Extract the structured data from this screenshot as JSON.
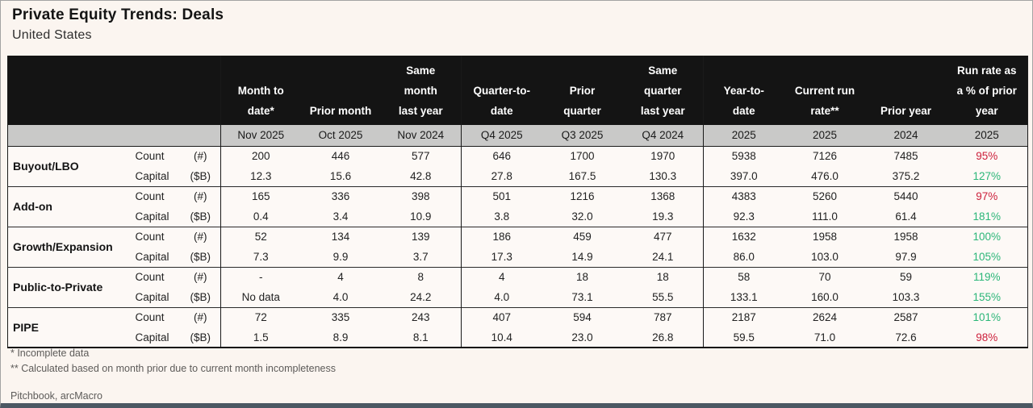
{
  "page": {
    "title": "Private Equity Trends: Deals",
    "subtitle": "United States",
    "footnotes": [
      "* Incomplete data",
      "** Calculated based on month prior due to current month incompleteness"
    ],
    "source": "Pitchbook, arcMacro"
  },
  "colors": {
    "positive": "#2bb678",
    "negative": "#cc1f3a",
    "header_bg": "#141414",
    "date_row_bg": "#c9c9c8",
    "bottom_bar": "#4c5863"
  },
  "chart_data": {
    "type": "table",
    "title": "Private Equity Trends: Deals",
    "subtitle": "United States",
    "columns": [
      {
        "label": "Month to\ndate*",
        "sub": "Nov 2025",
        "group_start": true
      },
      {
        "label": "Prior month",
        "sub": "Oct 2025",
        "group_start": false
      },
      {
        "label": "Same\nmonth\nlast year",
        "sub": "Nov 2024",
        "group_start": false
      },
      {
        "label": "Quarter-to-\ndate",
        "sub": "Q4 2025",
        "group_start": true
      },
      {
        "label": "Prior\nquarter",
        "sub": "Q3 2025",
        "group_start": false
      },
      {
        "label": "Same\nquarter\nlast year",
        "sub": "Q4 2024",
        "group_start": false
      },
      {
        "label": "Year-to-\ndate",
        "sub": "2025",
        "group_start": true
      },
      {
        "label": "Current run\nrate**",
        "sub": "2025",
        "group_start": false
      },
      {
        "label": "Prior year",
        "sub": "2024",
        "group_start": false
      },
      {
        "label": "Run rate as\na % of prior\nyear",
        "sub": "2025",
        "group_start": false
      }
    ],
    "rows": [
      {
        "category": "Buyout/LBO",
        "metrics": [
          {
            "name": "Count",
            "unit": "(#)",
            "values": [
              "200",
              "446",
              "577",
              "646",
              "1700",
              "1970",
              "5938",
              "7126",
              "7485"
            ],
            "run_rate": "95%",
            "run_rate_positive": false
          },
          {
            "name": "Capital",
            "unit": "($B)",
            "values": [
              "12.3",
              "15.6",
              "42.8",
              "27.8",
              "167.5",
              "130.3",
              "397.0",
              "476.0",
              "375.2"
            ],
            "run_rate": "127%",
            "run_rate_positive": true
          }
        ]
      },
      {
        "category": "Add-on",
        "metrics": [
          {
            "name": "Count",
            "unit": "(#)",
            "values": [
              "165",
              "336",
              "398",
              "501",
              "1216",
              "1368",
              "4383",
              "5260",
              "5440"
            ],
            "run_rate": "97%",
            "run_rate_positive": false
          },
          {
            "name": "Capital",
            "unit": "($B)",
            "values": [
              "0.4",
              "3.4",
              "10.9",
              "3.8",
              "32.0",
              "19.3",
              "92.3",
              "111.0",
              "61.4"
            ],
            "run_rate": "181%",
            "run_rate_positive": true
          }
        ]
      },
      {
        "category": "Growth/Expansion",
        "metrics": [
          {
            "name": "Count",
            "unit": "(#)",
            "values": [
              "52",
              "134",
              "139",
              "186",
              "459",
              "477",
              "1632",
              "1958",
              "1958"
            ],
            "run_rate": "100%",
            "run_rate_positive": true
          },
          {
            "name": "Capital",
            "unit": "($B)",
            "values": [
              "7.3",
              "9.9",
              "3.7",
              "17.3",
              "14.9",
              "24.1",
              "86.0",
              "103.0",
              "97.9"
            ],
            "run_rate": "105%",
            "run_rate_positive": true
          }
        ]
      },
      {
        "category": "Public-to-Private",
        "metrics": [
          {
            "name": "Count",
            "unit": "(#)",
            "values": [
              "-",
              "4",
              "8",
              "4",
              "18",
              "18",
              "58",
              "70",
              "59"
            ],
            "run_rate": "119%",
            "run_rate_positive": true
          },
          {
            "name": "Capital",
            "unit": "($B)",
            "values": [
              "No data",
              "4.0",
              "24.2",
              "4.0",
              "73.1",
              "55.5",
              "133.1",
              "160.0",
              "103.3"
            ],
            "run_rate": "155%",
            "run_rate_positive": true
          }
        ]
      },
      {
        "category": "PIPE",
        "metrics": [
          {
            "name": "Count",
            "unit": "(#)",
            "values": [
              "72",
              "335",
              "243",
              "407",
              "594",
              "787",
              "2187",
              "2624",
              "2587"
            ],
            "run_rate": "101%",
            "run_rate_positive": true
          },
          {
            "name": "Capital",
            "unit": "($B)",
            "values": [
              "1.5",
              "8.9",
              "8.1",
              "10.4",
              "23.0",
              "26.8",
              "59.5",
              "71.0",
              "72.6"
            ],
            "run_rate": "98%",
            "run_rate_positive": false
          }
        ]
      }
    ]
  }
}
